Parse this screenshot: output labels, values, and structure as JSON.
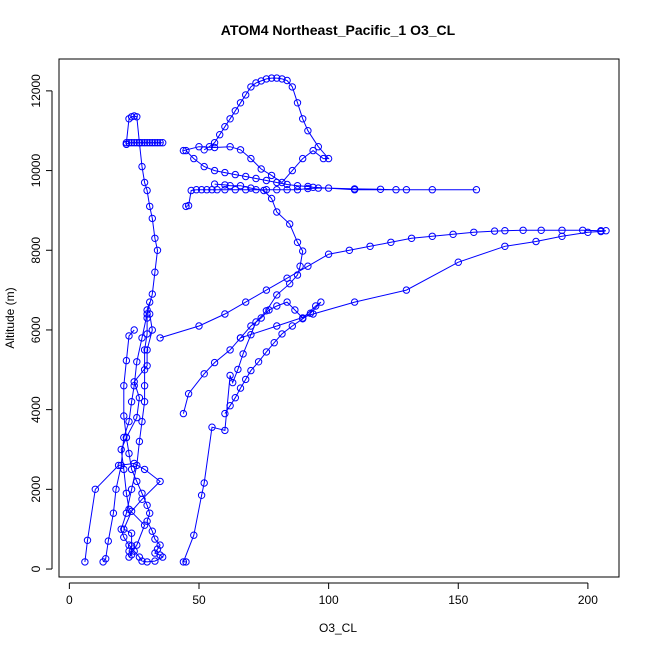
{
  "chart_data": {
    "type": "line",
    "title": "ATOM4 Northeast_Pacific_1 O3_CL",
    "xlabel": "O3_CL",
    "ylabel": "Altitude (m)",
    "xlim": [
      -4,
      212
    ],
    "ylim": [
      -200,
      12800
    ],
    "xticks": [
      0,
      50,
      100,
      150,
      200
    ],
    "yticks": [
      0,
      2000,
      4000,
      6000,
      8000,
      10000,
      12000
    ],
    "grid": false,
    "legend": "none",
    "color": "#0000ff",
    "series": [
      {
        "x": [
          6,
          7,
          10,
          19,
          25,
          29,
          35,
          28,
          24,
          21,
          24,
          24,
          23,
          24,
          23,
          26,
          29,
          23,
          22,
          21,
          20,
          22,
          26,
          27,
          25,
          30,
          30,
          32,
          31
        ],
        "y": [
          180,
          720,
          2000,
          2600,
          2650,
          2500,
          2200,
          1750,
          1450,
          1000,
          900,
          580,
          450,
          360,
          300,
          600,
          1100,
          1500,
          1900,
          2500,
          3000,
          3300,
          3800,
          4300,
          4700,
          5100,
          5500,
          6000,
          6400
        ]
      },
      {
        "x": [
          25,
          23,
          22,
          21,
          21,
          22,
          23,
          24,
          26,
          28,
          30,
          31,
          30,
          32,
          33,
          35,
          34,
          33,
          35,
          36,
          33,
          30,
          28,
          27,
          25,
          23,
          21,
          20,
          22,
          24,
          26,
          27,
          28,
          29,
          29,
          29,
          29,
          30,
          30,
          30,
          31
        ],
        "y": [
          6000,
          5850,
          5230,
          4600,
          3840,
          3300,
          2900,
          2500,
          2200,
          1900,
          1600,
          1400,
          1200,
          950,
          750,
          600,
          500,
          400,
          350,
          300,
          200,
          180,
          200,
          300,
          450,
          600,
          800,
          1000,
          1400,
          2000,
          2600,
          3200,
          3700,
          4200,
          4600,
          5000,
          5500,
          5900,
          6300,
          6500,
          6700
        ]
      },
      {
        "x": [
          13,
          14,
          15,
          17,
          18,
          20,
          21,
          23,
          24,
          25,
          26,
          28,
          30,
          32,
          33,
          34,
          33,
          32,
          31,
          30,
          29,
          28,
          27,
          26,
          25,
          24,
          23,
          22,
          22,
          22,
          23,
          24,
          25,
          26,
          27,
          28,
          29,
          30,
          31,
          32,
          33,
          34,
          35,
          36
        ],
        "y": [
          180,
          260,
          700,
          1400,
          2000,
          2600,
          3300,
          3700,
          4200,
          4600,
          5200,
          5800,
          6400,
          6900,
          7450,
          8000,
          8300,
          8800,
          9100,
          9500,
          9700,
          10100,
          10700,
          11350,
          11370,
          11350,
          11300,
          10700,
          10660,
          10660,
          10700,
          10700,
          10700,
          10700,
          10700,
          10700,
          10700,
          10700,
          10700,
          10700,
          10700,
          10700,
          10700,
          10700
        ]
      },
      {
        "x": [
          45,
          44,
          48,
          51,
          52,
          55,
          60,
          62,
          63,
          65,
          67,
          70,
          72,
          76,
          80,
          85,
          88,
          89,
          90,
          88,
          85,
          80,
          78,
          75,
          70,
          66,
          62,
          60,
          56
        ],
        "y": [
          180,
          180,
          850,
          1850,
          2160,
          3560,
          3480,
          4860,
          4680,
          5010,
          5400,
          5880,
          6200,
          6480,
          6880,
          7160,
          7380,
          7600,
          7980,
          8200,
          8660,
          8960,
          9300,
          9500,
          9560,
          9620,
          9620,
          9640,
          9660
        ]
      },
      {
        "x": [
          44,
          46,
          52,
          56,
          62,
          66,
          70,
          74,
          77,
          80,
          84,
          87,
          90,
          95,
          97,
          93,
          90,
          86,
          82,
          79,
          76,
          73,
          70,
          68,
          66,
          64,
          62,
          60
        ],
        "y": [
          3900,
          4400,
          4900,
          5180,
          5500,
          5800,
          6100,
          6300,
          6500,
          6600,
          6700,
          6500,
          6300,
          6600,
          6700,
          6420,
          6280,
          6100,
          5900,
          5680,
          5450,
          5200,
          4980,
          4760,
          4540,
          4300,
          4100,
          3900
        ]
      },
      {
        "x": [
          35,
          50,
          60,
          68,
          76,
          84,
          92,
          100,
          108,
          116,
          124,
          132,
          140,
          148,
          156,
          164,
          168,
          175,
          182,
          190,
          198,
          205,
          207,
          205,
          200,
          190,
          180,
          168,
          150,
          130,
          110,
          94,
          80,
          66
        ],
        "y": [
          5800,
          6100,
          6400,
          6700,
          7000,
          7300,
          7600,
          7900,
          8000,
          8100,
          8200,
          8300,
          8350,
          8400,
          8450,
          8480,
          8490,
          8500,
          8500,
          8500,
          8500,
          8490,
          8490,
          8470,
          8450,
          8350,
          8220,
          8100,
          7700,
          7000,
          6700,
          6400,
          6100,
          5800
        ]
      },
      {
        "x": [
          45,
          46,
          47,
          49,
          51,
          53,
          55,
          57,
          60,
          64,
          68,
          72,
          76,
          80,
          84,
          88,
          92,
          96,
          100,
          110,
          120,
          126,
          140,
          157,
          130,
          110,
          94,
          92,
          88,
          84,
          80,
          76,
          72,
          68,
          64,
          60,
          56,
          52,
          48,
          45
        ],
        "y": [
          9100,
          9120,
          9500,
          9520,
          9520,
          9520,
          9520,
          9520,
          9520,
          9520,
          9520,
          9520,
          9520,
          9520,
          9520,
          9520,
          9550,
          9560,
          9560,
          9540,
          9530,
          9520,
          9520,
          9520,
          9520,
          9520,
          9580,
          9600,
          9620,
          9650,
          9700,
          9750,
          9800,
          9850,
          9900,
          9950,
          10000,
          10100,
          10300,
          10500
        ]
      },
      {
        "x": [
          44,
          50,
          56,
          62,
          66,
          70,
          74,
          78,
          82,
          86,
          90,
          94,
          98,
          100,
          96,
          92,
          90,
          88,
          86,
          84,
          82,
          80,
          78,
          76,
          74,
          72,
          70,
          68,
          66,
          64,
          62,
          60,
          58,
          56,
          54,
          52
        ],
        "y": [
          10500,
          10600,
          10580,
          10600,
          10520,
          10300,
          10040,
          9880,
          9700,
          10000,
          10300,
          10500,
          10300,
          10300,
          10600,
          11000,
          11300,
          11700,
          12100,
          12260,
          12300,
          12320,
          12320,
          12300,
          12250,
          12200,
          12100,
          11900,
          11700,
          11500,
          11300,
          11100,
          10900,
          10700,
          10600,
          10520
        ]
      }
    ]
  }
}
